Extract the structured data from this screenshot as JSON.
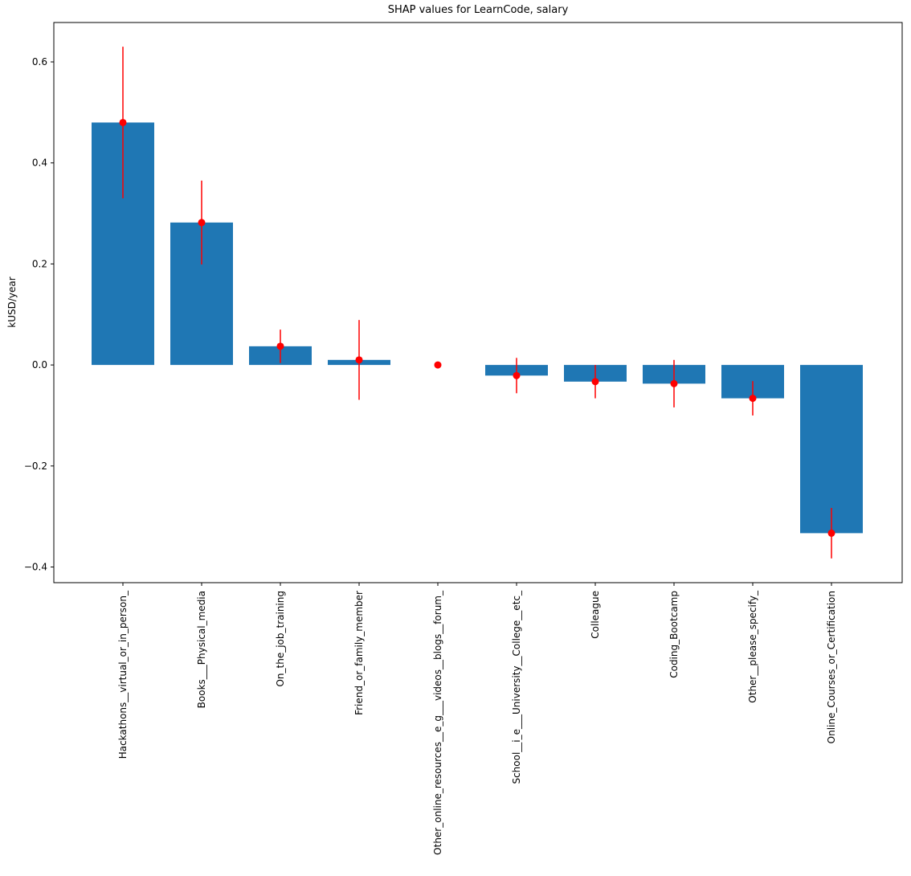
{
  "chart_data": {
    "type": "bar",
    "title": "SHAP values for LearnCode, salary",
    "ylabel": "kUSD/year",
    "categories": [
      "Hackathons__virtual_or_in_person_",
      "Books___Physical_media",
      "On_the_job_training",
      "Friend_or_family_member",
      "Other_online_resources__e_g___videos__blogs__forum_",
      "School__i_e___University__College__etc_",
      "Colleague",
      "Coding_Bootcamp",
      "Other__please_specify_",
      "Online_Courses_or_Certification"
    ],
    "values": [
      0.48,
      0.282,
      0.037,
      0.01,
      0.0,
      -0.021,
      -0.033,
      -0.037,
      -0.066,
      -0.333
    ],
    "errors": [
      0.15,
      0.083,
      0.033,
      0.079,
      0.0,
      0.035,
      0.033,
      0.047,
      0.034,
      0.05
    ],
    "color": "#1f77b4",
    "error_color": "#ff0000",
    "ylim": [
      -0.431,
      0.678
    ],
    "yticks": [
      {
        "value": -0.4,
        "label": "−0.4"
      },
      {
        "value": -0.2,
        "label": "−0.2"
      },
      {
        "value": 0,
        "label": "0.0"
      },
      0.2,
      0.4,
      0.6
    ],
    "grid": false
  }
}
